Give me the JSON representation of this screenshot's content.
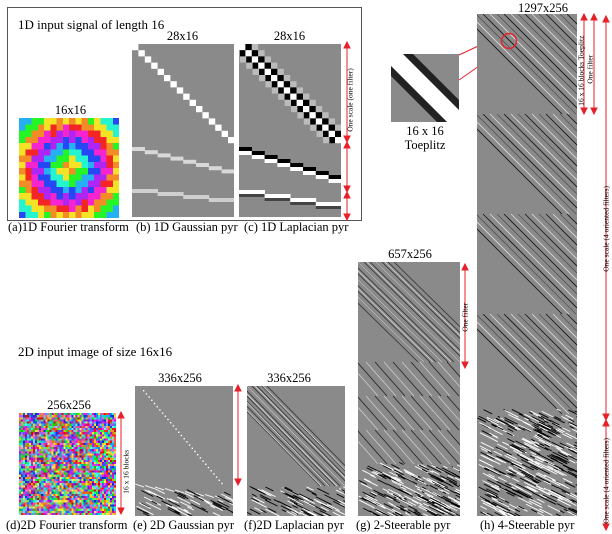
{
  "top_section": {
    "title": "1D input signal of length 16",
    "panels": [
      {
        "dim": "16x16",
        "caption": "(a)1D Fourier transform"
      },
      {
        "dim": "28x16",
        "caption": "(b) 1D Gaussian pyr"
      },
      {
        "dim": "28x16",
        "caption": "(c) 1D Laplacian pyr"
      }
    ],
    "side_labels": [
      "One scale (one filter)"
    ]
  },
  "toeplitz_inset": {
    "dim": "16 x 16",
    "label": "Toeplitz"
  },
  "bottom_section": {
    "title": "2D input image of size 16x16",
    "panels": [
      {
        "dim": "256x256",
        "caption": "(d)2D Fourier transform",
        "side_label": "16 x 16 blocks"
      },
      {
        "dim": "336x256",
        "caption": "(e) 2D Gaussian pyr"
      },
      {
        "dim": "336x256",
        "caption": "(f)2D Laplacian pyr"
      },
      {
        "dim": "657x256",
        "caption": "(g) 2-Steerable pyr",
        "side_label": "One filter"
      },
      {
        "dim": "1297x256",
        "caption": "(h) 4-Steerable pyr"
      }
    ]
  },
  "steerable4_labels": {
    "blocks": "16 x 16 blocks Toeplitz",
    "one_filter": "One filter",
    "scale_4": "One scale (4 oriented filters)",
    "scale_4b": "One scale (4 oriented filters)"
  },
  "colors": {
    "annotation": "#e8202a",
    "panel_gray": "#8a8a8a"
  }
}
